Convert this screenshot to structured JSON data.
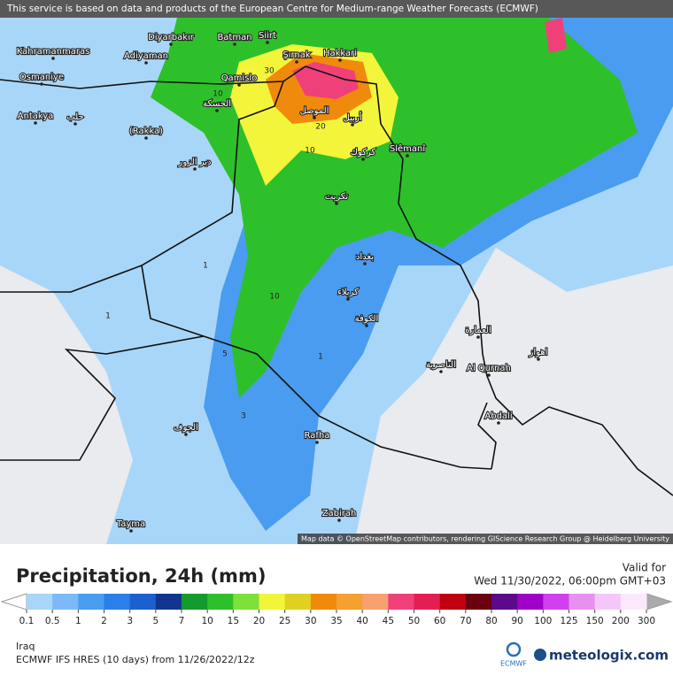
{
  "map": {
    "notice": "This service is based on data and products of the European Centre for Medium-range Weather Forecasts (ECMWF)",
    "attribution": "Map data © OpenStreetMap contributors, rendering GIScience Research Group @ Heidelberg University",
    "places": [
      "Kahramanmaras",
      "Adiyaman",
      "Diyarbakır",
      "Batman",
      "Siirt",
      "Şırnak",
      "Hakkari",
      "Osmaniye",
      "Qamislo",
      "Antakya",
      "(Rakka)",
      "Slêmanî",
      "Al Qurnah",
      "Abdali",
      "Rafha",
      "Zabirah",
      "Tayma",
      "حلب",
      "الحسكة",
      "دير الزور",
      "الموصل",
      "أربيل",
      "كركوك",
      "تكريت",
      "بغداد",
      "كربلاء",
      "الكوفة",
      "الناصرية",
      "العمارة",
      "اهواز",
      "الجوف"
    ],
    "contour_labels": [
      "30",
      "20",
      "10",
      "10",
      "10",
      "5",
      "3",
      "1",
      "1",
      "1"
    ]
  },
  "legend": {
    "title": "Precipitation, 24h (mm)",
    "valid_label": "Valid for",
    "valid_time": "Wed 11/30/2022, 06:00pm GMT+03",
    "ticks": [
      0.1,
      0.5,
      1,
      2,
      3,
      5,
      7,
      10,
      15,
      20,
      25,
      30,
      35,
      40,
      45,
      50,
      60,
      70,
      80,
      90,
      100,
      125,
      150,
      200,
      300
    ],
    "colors": [
      "#a8d6f8",
      "#7dbaf5",
      "#4a9cf0",
      "#2a7fe8",
      "#1c5fcf",
      "#12368f",
      "#159a2e",
      "#2ec02a",
      "#7ee03a",
      "#f3f53a",
      "#e0d020",
      "#f08a0c",
      "#f5a030",
      "#f7a070",
      "#f0407a",
      "#e51e52",
      "#c00010",
      "#6a0010",
      "#5c0a8a",
      "#a000c8",
      "#d040f0",
      "#e890f0",
      "#f3c8f8",
      "#fce8fc"
    ]
  },
  "footer": {
    "region": "Iraq",
    "model": "ECMWF IFS HRES (10 days) from 11/26/2022/12z",
    "ecmwf": "ECMWF",
    "brand": "meteologix.com"
  }
}
